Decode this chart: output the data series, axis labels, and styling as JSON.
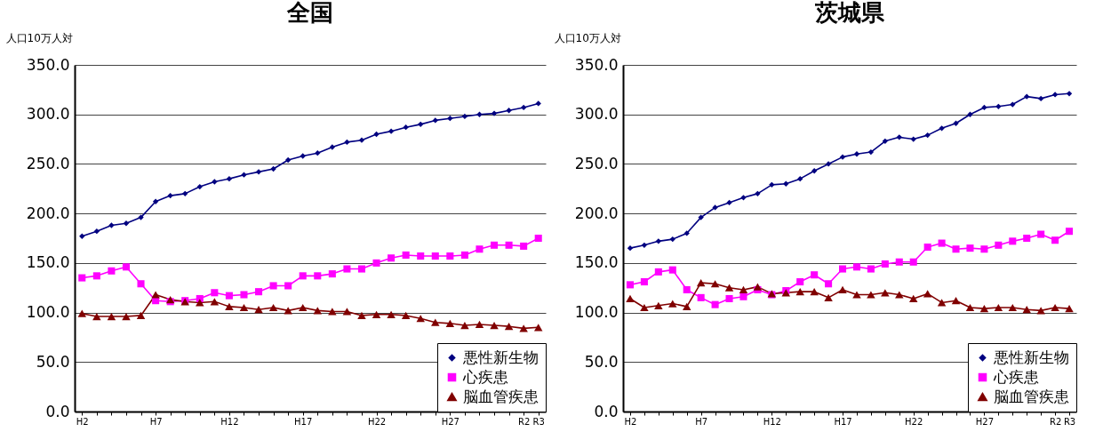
{
  "chart_data": [
    {
      "type": "line",
      "title": "全国",
      "ylabel": "人口10万人対",
      "categories": [
        "H2",
        null,
        null,
        null,
        null,
        "H7",
        null,
        null,
        null,
        null,
        "H12",
        null,
        null,
        null,
        null,
        "H17",
        null,
        null,
        null,
        null,
        "H22",
        null,
        null,
        null,
        null,
        "H27",
        null,
        null,
        null,
        null,
        "R2",
        "R3"
      ],
      "series": [
        {
          "name": "悪性新生物",
          "color": "#000080",
          "marker": "diamond",
          "values": [
            177,
            182,
            188,
            190,
            196,
            212,
            218,
            220,
            227,
            232,
            235,
            239,
            242,
            245,
            254,
            258,
            261,
            267,
            272,
            274,
            280,
            283,
            287,
            290,
            294,
            296,
            298,
            300,
            301,
            304,
            307,
            311
          ]
        },
        {
          "name": "心疾患",
          "color": "#ff00ff",
          "marker": "square",
          "values": [
            135,
            137,
            142,
            146,
            129,
            112,
            111,
            112,
            114,
            120,
            117,
            118,
            121,
            127,
            127,
            137,
            137,
            139,
            144,
            144,
            150,
            155,
            158,
            157,
            157,
            157,
            158,
            164,
            168,
            168,
            167,
            175
          ]
        },
        {
          "name": "脳血管疾患",
          "color": "#800000",
          "marker": "triangle",
          "values": [
            99,
            96,
            96,
            96,
            97,
            118,
            113,
            111,
            110,
            111,
            106,
            105,
            103,
            105,
            102,
            105,
            102,
            101,
            101,
            97,
            98,
            98,
            97,
            94,
            90,
            89,
            87,
            88,
            87,
            86,
            84,
            85
          ]
        }
      ],
      "ylim": [
        0,
        350
      ],
      "yticks": [
        {
          "value": 0,
          "label": "0.0"
        },
        {
          "value": 50,
          "label": "50.0"
        },
        {
          "value": 100,
          "label": "100.0"
        },
        {
          "value": 150,
          "label": "150.0"
        },
        {
          "value": 200,
          "label": "200.0"
        },
        {
          "value": 250,
          "label": "250.0"
        },
        {
          "value": 300,
          "label": "300.0"
        },
        {
          "value": 350,
          "label": "350.0"
        }
      ],
      "grid": "y",
      "legend": "bottom right"
    },
    {
      "type": "line",
      "title": "茨城県",
      "ylabel": "人口10万人対",
      "categories": [
        "H2",
        null,
        null,
        null,
        null,
        "H7",
        null,
        null,
        null,
        null,
        "H12",
        null,
        null,
        null,
        null,
        "H17",
        null,
        null,
        null,
        null,
        "H22",
        null,
        null,
        null,
        null,
        "H27",
        null,
        null,
        null,
        null,
        "R2",
        "R3"
      ],
      "series": [
        {
          "name": "悪性新生物",
          "color": "#000080",
          "marker": "diamond",
          "values": [
            165,
            168,
            172,
            174,
            180,
            196,
            206,
            211,
            216,
            220,
            229,
            230,
            235,
            243,
            250,
            257,
            260,
            262,
            273,
            277,
            275,
            279,
            286,
            291,
            300,
            307,
            308,
            310,
            318,
            316,
            320,
            321
          ]
        },
        {
          "name": "心疾患",
          "color": "#ff00ff",
          "marker": "square",
          "values": [
            128,
            131,
            141,
            143,
            123,
            115,
            108,
            114,
            116,
            123,
            118,
            122,
            131,
            138,
            129,
            144,
            146,
            144,
            149,
            151,
            151,
            166,
            170,
            164,
            165,
            164,
            168,
            172,
            175,
            179,
            173,
            182
          ]
        },
        {
          "name": "脳血管疾患",
          "color": "#800000",
          "marker": "triangle",
          "values": [
            114,
            105,
            107,
            109,
            106,
            130,
            129,
            125,
            123,
            126,
            119,
            120,
            121,
            121,
            115,
            123,
            118,
            118,
            120,
            118,
            114,
            119,
            110,
            112,
            105,
            104,
            105,
            105,
            103,
            102,
            105,
            104
          ]
        }
      ],
      "ylim": [
        0,
        350
      ],
      "yticks": [
        {
          "value": 0,
          "label": "0.0"
        },
        {
          "value": 50,
          "label": "50.0"
        },
        {
          "value": 100,
          "label": "100.0"
        },
        {
          "value": 150,
          "label": "150.0"
        },
        {
          "value": 200,
          "label": "200.0"
        },
        {
          "value": 250,
          "label": "250.0"
        },
        {
          "value": 300,
          "label": "300.0"
        },
        {
          "value": 350,
          "label": "350.0"
        }
      ],
      "grid": "y",
      "legend": "bottom right"
    }
  ]
}
